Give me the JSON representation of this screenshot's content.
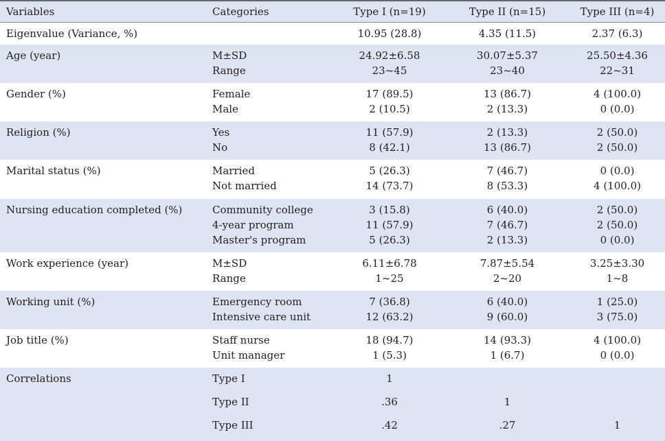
{
  "headers": [
    "Variables",
    "Categories",
    "Type I (n=19)",
    "Type II (n=15)",
    "Type III (n=4)"
  ],
  "rows": [
    {
      "variable": "Eigenvalue (Variance, %)",
      "categories": [
        ""
      ],
      "t1": [
        "10.95 (28.8)"
      ],
      "t2": [
        "4.35 (11.5)"
      ],
      "t3": [
        "2.37 (6.3)"
      ]
    },
    {
      "variable": "Age (year)",
      "categories": [
        "M±SD",
        "Range"
      ],
      "t1": [
        "24.92±6.58",
        "23~45"
      ],
      "t2": [
        "30.07±5.37",
        "23~40"
      ],
      "t3": [
        "25.50±4.36",
        "22~31"
      ]
    },
    {
      "variable": "Gender (%)",
      "categories": [
        "Female",
        "Male"
      ],
      "t1": [
        "17 (89.5)",
        "2 (10.5)"
      ],
      "t2": [
        "13 (86.7)",
        "2 (13.3)"
      ],
      "t3": [
        "4 (100.0)",
        "0 (0.0)"
      ]
    },
    {
      "variable": "Religion (%)",
      "categories": [
        "Yes",
        "No"
      ],
      "t1": [
        "11 (57.9)",
        "8 (42.1)"
      ],
      "t2": [
        "2 (13.3)",
        "13 (86.7)"
      ],
      "t3": [
        "2 (50.0)",
        "2 (50.0)"
      ]
    },
    {
      "variable": "Marital status (%)",
      "categories": [
        "Married",
        "Not married"
      ],
      "t1": [
        "5 (26.3)",
        "14 (73.7)"
      ],
      "t2": [
        "7 (46.7)",
        "8 (53.3)"
      ],
      "t3": [
        "0 (0.0)",
        "4 (100.0)"
      ]
    },
    {
      "variable": "Nursing education completed (%)",
      "categories": [
        "Community college",
        "4-year program",
        "Master's program"
      ],
      "t1": [
        "3 (15.8)",
        "11 (57.9)",
        "5 (26.3)"
      ],
      "t2": [
        "6 (40.0)",
        "7 (46.7)",
        "2 (13.3)"
      ],
      "t3": [
        "2 (50.0)",
        "2 (50.0)",
        "0 (0.0)"
      ]
    },
    {
      "variable": "Work experience (year)",
      "categories": [
        "M±SD",
        "Range"
      ],
      "t1": [
        "6.11±6.78",
        "1~25"
      ],
      "t2": [
        "7.87±5.54",
        "2~20"
      ],
      "t3": [
        "3.25±3.30",
        "1~8"
      ]
    },
    {
      "variable": "Working unit (%)",
      "categories": [
        "Emergency room",
        "Intensive care unit"
      ],
      "t1": [
        "7 (36.8)",
        "12 (63.2)"
      ],
      "t2": [
        "6 (40.0)",
        "9 (60.0)"
      ],
      "t3": [
        "1 (25.0)",
        "3 (75.0)"
      ]
    },
    {
      "variable": "Job title (%)",
      "categories": [
        "Staff nurse",
        "Unit manager"
      ],
      "t1": [
        "18 (94.7)",
        "1 (5.3)"
      ],
      "t2": [
        "14 (93.3)",
        "1 (6.7)"
      ],
      "t3": [
        "4 (100.0)",
        "0 (0.0)"
      ]
    }
  ],
  "correlations": {
    "variable": "Correlations",
    "categories": [
      "Type I",
      "Type II",
      "Type III"
    ],
    "t1": [
      "1",
      ".36",
      ".42"
    ],
    "t2": [
      "",
      "1",
      ".27"
    ],
    "t3": [
      "",
      "",
      "1"
    ]
  },
  "colors": {
    "row_shade": "#dfe4f3",
    "text": "#1f1f1f"
  }
}
